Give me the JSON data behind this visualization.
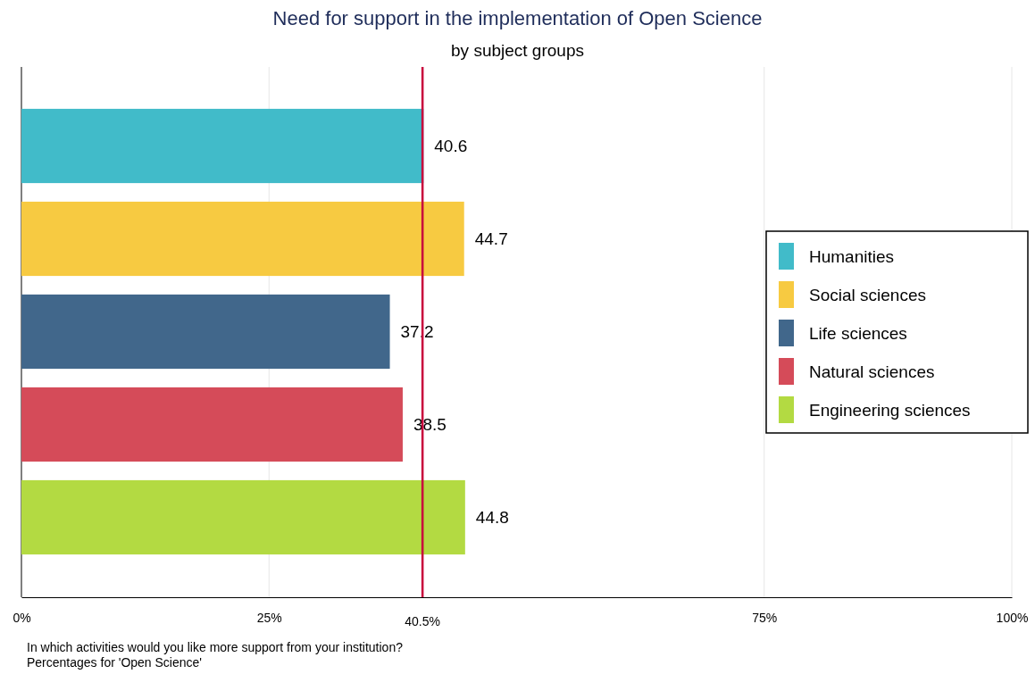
{
  "chart_data": {
    "type": "bar",
    "orientation": "horizontal",
    "stacked": true,
    "title": "Need for support in the implementation of Open Science",
    "subtitle": "by subject groups",
    "categories": [
      null,
      null,
      null,
      null,
      null
    ],
    "series": [
      {
        "name": "Humanities",
        "color": "#41bbc9",
        "values": [
          40.6,
          null,
          null,
          null,
          null
        ]
      },
      {
        "name": "Social sciences",
        "color": "#f7ca41",
        "values": [
          null,
          44.7,
          null,
          null,
          null
        ]
      },
      {
        "name": "Life sciences",
        "color": "#41678b",
        "values": [
          null,
          null,
          37.2,
          null,
          null
        ]
      },
      {
        "name": "Natural sciences",
        "color": "#d54b59",
        "values": [
          null,
          null,
          null,
          38.5,
          null
        ]
      },
      {
        "name": "Engineering sciences",
        "color": "#b3da42",
        "values": [
          null,
          null,
          null,
          null,
          44.8
        ]
      }
    ],
    "xlim": [
      0,
      100
    ],
    "xticks": [
      {
        "value": 0,
        "label": "0%"
      },
      {
        "value": 25,
        "label": "25%"
      },
      {
        "value": 75,
        "label": "75%"
      },
      {
        "value": 100,
        "label": "100%"
      }
    ],
    "ref_lines": [
      {
        "axis": "x",
        "value": 40.5,
        "label": "40.5%",
        "color": "#c8003c"
      }
    ],
    "grid": "x",
    "data_labels": true,
    "legend": "right",
    "annotations": [
      "In which activities would you like more support from your institution?",
      "Percentages for 'Open Science'"
    ]
  }
}
